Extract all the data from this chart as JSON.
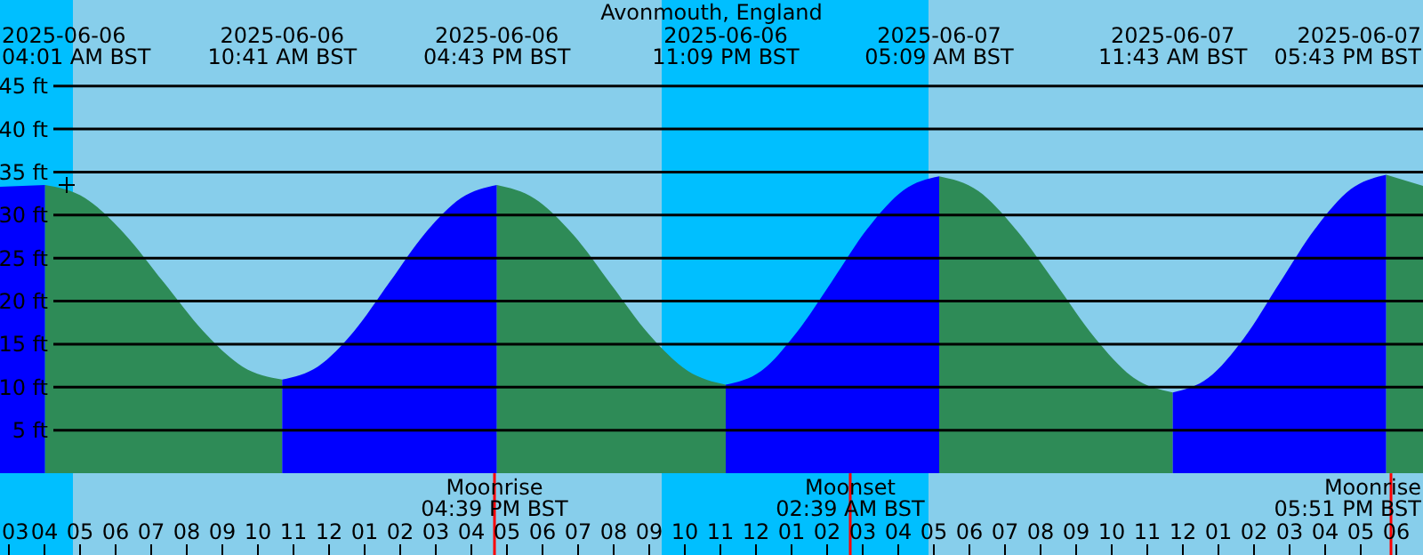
{
  "chart_data": {
    "type": "area",
    "title": "Avonmouth, England",
    "xlim": [
      "2025-06-06T02:45",
      "2025-06-07T18:45"
    ],
    "ylim": [
      -9.5,
      55
    ],
    "xticks": [
      {
        "value": "2025-06-06T03:00",
        "label": "03"
      },
      {
        "value": "2025-06-06T04:00",
        "label": "04"
      },
      {
        "value": "2025-06-06T05:00",
        "label": "05"
      },
      {
        "value": "2025-06-06T06:00",
        "label": "06"
      },
      {
        "value": "2025-06-06T07:00",
        "label": "07"
      },
      {
        "value": "2025-06-06T08:00",
        "label": "08"
      },
      {
        "value": "2025-06-06T09:00",
        "label": "09"
      },
      {
        "value": "2025-06-06T10:00",
        "label": "10"
      },
      {
        "value": "2025-06-06T11:00",
        "label": "11"
      },
      {
        "value": "2025-06-06T12:00",
        "label": "12"
      },
      {
        "value": "2025-06-06T13:00",
        "label": "01"
      },
      {
        "value": "2025-06-06T14:00",
        "label": "02"
      },
      {
        "value": "2025-06-06T15:00",
        "label": "03"
      },
      {
        "value": "2025-06-06T16:00",
        "label": "04"
      },
      {
        "value": "2025-06-06T17:00",
        "label": "05"
      },
      {
        "value": "2025-06-06T18:00",
        "label": "06"
      },
      {
        "value": "2025-06-06T19:00",
        "label": "07"
      },
      {
        "value": "2025-06-06T20:00",
        "label": "08"
      },
      {
        "value": "2025-06-06T21:00",
        "label": "09"
      },
      {
        "value": "2025-06-06T22:00",
        "label": "10"
      },
      {
        "value": "2025-06-06T23:00",
        "label": "11"
      },
      {
        "value": "2025-06-07T00:00",
        "label": "12"
      },
      {
        "value": "2025-06-07T01:00",
        "label": "01"
      },
      {
        "value": "2025-06-07T02:00",
        "label": "02"
      },
      {
        "value": "2025-06-07T03:00",
        "label": "03"
      },
      {
        "value": "2025-06-07T04:00",
        "label": "04"
      },
      {
        "value": "2025-06-07T05:00",
        "label": "05"
      },
      {
        "value": "2025-06-07T06:00",
        "label": "06"
      },
      {
        "value": "2025-06-07T07:00",
        "label": "07"
      },
      {
        "value": "2025-06-07T08:00",
        "label": "08"
      },
      {
        "value": "2025-06-07T09:00",
        "label": "09"
      },
      {
        "value": "2025-06-07T10:00",
        "label": "10"
      },
      {
        "value": "2025-06-07T11:00",
        "label": "11"
      },
      {
        "value": "2025-06-07T12:00",
        "label": "12"
      },
      {
        "value": "2025-06-07T13:00",
        "label": "01"
      },
      {
        "value": "2025-06-07T14:00",
        "label": "02"
      },
      {
        "value": "2025-06-07T15:00",
        "label": "03"
      },
      {
        "value": "2025-06-07T16:00",
        "label": "04"
      },
      {
        "value": "2025-06-07T17:00",
        "label": "05"
      },
      {
        "value": "2025-06-07T18:00",
        "label": "06"
      }
    ],
    "yticks": [
      {
        "value": 5,
        "label": "5 ft"
      },
      {
        "value": 10,
        "label": "10 ft"
      },
      {
        "value": 15,
        "label": "15 ft"
      },
      {
        "value": 20,
        "label": "20 ft"
      },
      {
        "value": 25,
        "label": "25 ft"
      },
      {
        "value": 30,
        "label": "30 ft"
      },
      {
        "value": 35,
        "label": "35 ft"
      },
      {
        "value": 40,
        "label": "40 ft"
      },
      {
        "value": 45,
        "label": "45 ft"
      }
    ],
    "grid": "y",
    "series": [
      {
        "color": "#0000ff",
        "x": [
          "2025-06-06T02:45",
          "2025-06-06T04:01"
        ],
        "values": [
          33.3,
          33.5
        ]
      },
      {
        "color": "#2e8b57",
        "x": [
          "2025-06-06T04:01",
          "2025-06-06T05:08",
          "2025-06-06T06:14",
          "2025-06-06T07:21",
          "2025-06-06T08:28",
          "2025-06-06T09:34",
          "2025-06-06T10:41"
        ],
        "values": [
          33.5,
          32.0,
          27.9,
          22.2,
          16.5,
          12.4,
          10.9
        ]
      },
      {
        "color": "#0000ff",
        "x": [
          "2025-06-06T10:41",
          "2025-06-06T11:41",
          "2025-06-06T12:42",
          "2025-06-06T13:42",
          "2025-06-06T14:42",
          "2025-06-06T15:43",
          "2025-06-06T16:43"
        ],
        "values": [
          10.9,
          12.4,
          16.5,
          22.2,
          27.9,
          32.0,
          33.5
        ]
      },
      {
        "color": "#2e8b57",
        "x": [
          "2025-06-06T16:43",
          "2025-06-06T17:47",
          "2025-06-06T18:52",
          "2025-06-06T19:56",
          "2025-06-06T21:00",
          "2025-06-06T22:05",
          "2025-06-06T23:09"
        ],
        "values": [
          33.5,
          31.9,
          27.7,
          21.9,
          16.1,
          11.9,
          10.3
        ]
      },
      {
        "color": "#0000ff",
        "x": [
          "2025-06-06T23:09",
          "2025-06-07T00:09",
          "2025-06-07T01:09",
          "2025-06-07T02:09",
          "2025-06-07T03:09",
          "2025-06-07T04:09",
          "2025-06-07T05:09"
        ],
        "values": [
          10.3,
          11.9,
          16.4,
          22.4,
          28.5,
          32.9,
          34.5
        ]
      },
      {
        "color": "#2e8b57",
        "x": [
          "2025-06-07T05:09",
          "2025-06-07T06:15",
          "2025-06-07T07:20",
          "2025-06-07T08:26",
          "2025-06-07T09:32",
          "2025-06-07T10:37",
          "2025-06-07T11:43"
        ],
        "values": [
          34.5,
          32.8,
          28.2,
          22.0,
          15.7,
          11.1,
          9.4
        ]
      },
      {
        "color": "#0000ff",
        "x": [
          "2025-06-07T11:43",
          "2025-06-07T12:43",
          "2025-06-07T13:43",
          "2025-06-07T14:43",
          "2025-06-07T15:43",
          "2025-06-07T16:43",
          "2025-06-07T17:43"
        ],
        "values": [
          9.4,
          11.1,
          15.7,
          22.1,
          28.4,
          33.0,
          34.7
        ]
      },
      {
        "color": "#2e8b57",
        "x": [
          "2025-06-07T17:43",
          "2025-06-07T18:45"
        ],
        "values": [
          34.7,
          33.4
        ]
      }
    ],
    "bands": [
      {
        "axis": "x",
        "from": "2025-06-06T02:45",
        "to": "2025-06-06T04:48",
        "color": "#00bfff"
      },
      {
        "axis": "x",
        "from": "2025-06-06T21:21",
        "to": "2025-06-07T04:51",
        "color": "#00bfff"
      }
    ],
    "ref_lines": [
      {
        "axis": "x",
        "value": "2025-06-06T16:39",
        "label": "Moonrise\n04:39 PM BST",
        "color": "#ff0000"
      },
      {
        "axis": "x",
        "value": "2025-06-07T02:39",
        "label": "Moonset\n02:39 AM BST",
        "color": "#ff0000"
      },
      {
        "axis": "x",
        "value": "2025-06-07T17:51",
        "label": "Moonrise\n05:51 PM BST",
        "color": "#ff0000"
      }
    ],
    "annotations": [
      "2025-06-06\n04:01 AM BST",
      "2025-06-06\n10:41 AM BST",
      "2025-06-06\n04:43 PM BST",
      "2025-06-06\n11:09 PM BST",
      "2025-06-07\n05:09 AM BST",
      "2025-06-07\n11:43 AM BST",
      "2025-06-07\n05:43 PM BST"
    ]
  }
}
